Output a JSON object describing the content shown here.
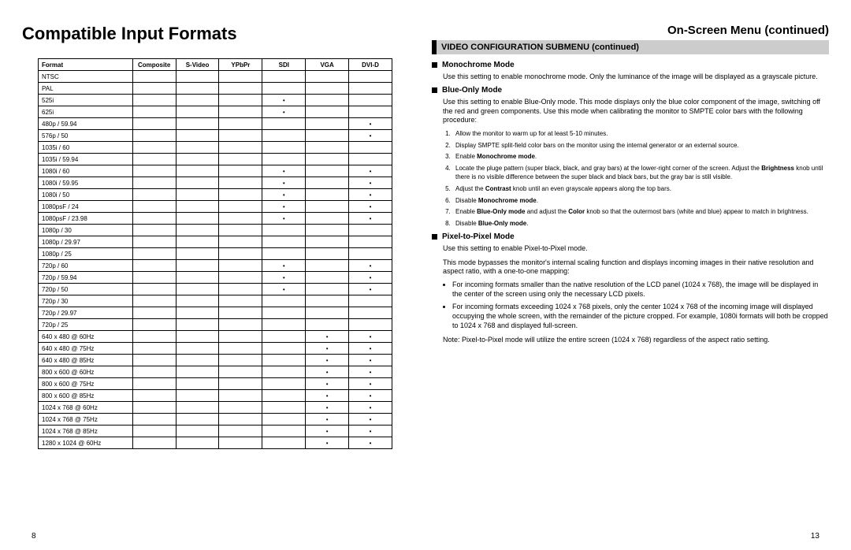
{
  "left": {
    "title": "Compatible Input Formats",
    "page_number": "8",
    "table": {
      "headers": [
        "Format",
        "Composite",
        "S-Video",
        "YPbPr",
        "SDI",
        "VGA",
        "DVI-D"
      ],
      "col_widths": [
        "120px",
        "55px",
        "55px",
        "55px",
        "55px",
        "55px",
        "55px"
      ],
      "rows": [
        {
          "fmt": "NTSC",
          "d": [
            0,
            0,
            0,
            0,
            0,
            0
          ]
        },
        {
          "fmt": "PAL",
          "d": [
            0,
            0,
            0,
            0,
            0,
            0
          ]
        },
        {
          "fmt": "525i",
          "d": [
            0,
            0,
            0,
            1,
            0,
            0
          ]
        },
        {
          "fmt": "625i",
          "d": [
            0,
            0,
            0,
            1,
            0,
            0
          ]
        },
        {
          "fmt": "480p / 59.94",
          "d": [
            0,
            0,
            0,
            0,
            0,
            1
          ]
        },
        {
          "fmt": "576p / 50",
          "d": [
            0,
            0,
            0,
            0,
            0,
            1
          ]
        },
        {
          "fmt": "1035i / 60",
          "d": [
            0,
            0,
            0,
            0,
            0,
            0
          ]
        },
        {
          "fmt": "1035i / 59.94",
          "d": [
            0,
            0,
            0,
            0,
            0,
            0
          ]
        },
        {
          "fmt": "1080i / 60",
          "d": [
            0,
            0,
            0,
            1,
            0,
            1
          ]
        },
        {
          "fmt": "1080i / 59.95",
          "d": [
            0,
            0,
            0,
            1,
            0,
            1
          ]
        },
        {
          "fmt": "1080i / 50",
          "d": [
            0,
            0,
            0,
            1,
            0,
            1
          ]
        },
        {
          "fmt": "1080psF / 24",
          "d": [
            0,
            0,
            0,
            1,
            0,
            1
          ]
        },
        {
          "fmt": "1080psF / 23.98",
          "d": [
            0,
            0,
            0,
            1,
            0,
            1
          ]
        },
        {
          "fmt": "1080p / 30",
          "d": [
            0,
            0,
            0,
            0,
            0,
            0
          ]
        },
        {
          "fmt": "1080p / 29.97",
          "d": [
            0,
            0,
            0,
            0,
            0,
            0
          ]
        },
        {
          "fmt": "1080p / 25",
          "d": [
            0,
            0,
            0,
            0,
            0,
            0
          ]
        },
        {
          "fmt": "720p / 60",
          "d": [
            0,
            0,
            0,
            1,
            0,
            1
          ]
        },
        {
          "fmt": "720p / 59.94",
          "d": [
            0,
            0,
            0,
            1,
            0,
            1
          ]
        },
        {
          "fmt": "720p / 50",
          "d": [
            0,
            0,
            0,
            1,
            0,
            1
          ]
        },
        {
          "fmt": "720p / 30",
          "d": [
            0,
            0,
            0,
            0,
            0,
            0
          ]
        },
        {
          "fmt": "720p / 29.97",
          "d": [
            0,
            0,
            0,
            0,
            0,
            0
          ]
        },
        {
          "fmt": "720p / 25",
          "d": [
            0,
            0,
            0,
            0,
            0,
            0
          ]
        },
        {
          "fmt": "640 x 480 @ 60Hz",
          "d": [
            0,
            0,
            0,
            0,
            1,
            1
          ]
        },
        {
          "fmt": "640 x 480 @ 75Hz",
          "d": [
            0,
            0,
            0,
            0,
            1,
            1
          ]
        },
        {
          "fmt": "640 x 480 @ 85Hz",
          "d": [
            0,
            0,
            0,
            0,
            1,
            1
          ]
        },
        {
          "fmt": "800 x 600 @ 60Hz",
          "d": [
            0,
            0,
            0,
            0,
            1,
            1
          ]
        },
        {
          "fmt": "800 x 600 @ 75Hz",
          "d": [
            0,
            0,
            0,
            0,
            1,
            1
          ]
        },
        {
          "fmt": "800 x 600 @ 85Hz",
          "d": [
            0,
            0,
            0,
            0,
            1,
            1
          ]
        },
        {
          "fmt": "1024 x 768 @ 60Hz",
          "d": [
            0,
            0,
            0,
            0,
            1,
            1
          ]
        },
        {
          "fmt": "1024 x 768 @ 75Hz",
          "d": [
            0,
            0,
            0,
            0,
            1,
            1
          ]
        },
        {
          "fmt": "1024 x 768 @ 85Hz",
          "d": [
            0,
            0,
            0,
            0,
            1,
            1
          ]
        },
        {
          "fmt": "1280 x 1024 @ 60Hz",
          "d": [
            0,
            0,
            0,
            0,
            1,
            1
          ]
        }
      ]
    }
  },
  "right": {
    "title": "On-Screen Menu (continued)",
    "page_number": "13",
    "banner": "VIDEO CONFIGURATION SUBMENU (continued)",
    "sections": {
      "mono": {
        "heading": "Monochrome Mode",
        "text": "Use this setting to enable monochrome mode. Only the luminance of the image will be displayed as a grayscale picture."
      },
      "blue": {
        "heading": "Blue-Only Mode",
        "text": "Use this setting to enable Blue-Only mode. This mode displays only the blue color component of the image, switching off the red and green components. Use this mode when calibrating the monitor to SMPTE color bars with the following procedure:",
        "steps": [
          "Allow the monitor to warm up for at least 5-10 minutes.",
          "Display SMPTE split-field color bars on the monitor using the internal generator or an external source.",
          "Enable <b>Monochrome mode</b>.",
          "Locate the pluge pattern (super black, black, and gray bars) at the lower-right corner of the screen. Adjust the <b>Brightness</b> knob until there is no visible difference between the super black and black bars, but the gray bar is still visible.",
          "Adjust the <b>Contrast</b> knob until an even grayscale appears along the top bars.",
          "Disable <b>Monochrome mode</b>.",
          "Enable <b>Blue-Only mode</b> and adjust the <b>Color</b> knob so that the outermost bars (white and blue) appear to match in brightness.",
          "Disable <b>Blue-Only mode</b>."
        ]
      },
      "p2p": {
        "heading": "Pixel-to-Pixel Mode",
        "intro": "Use this setting to enable Pixel-to-Pixel mode.",
        "desc": "This mode bypasses the monitor's internal scaling function and displays incoming images in their native resolution and aspect ratio, with a one-to-one mapping:",
        "bullets": [
          "For incoming formats smaller than the native resolution of the LCD panel (1024 x 768), the image will be displayed in the center of the screen using only the necessary LCD pixels.",
          "For incoming formats exceeding 1024 x 768 pixels, only the center 1024 x 768 of the incoming image will displayed occupying the whole screen, with the remainder of the picture cropped. For example, 1080i formats will both be cropped to 1024 x 768 and displayed full-screen."
        ],
        "note": "Note: Pixel-to-Pixel mode will utilize the entire screen (1024 x 768) regardless of the aspect ratio setting."
      }
    }
  }
}
